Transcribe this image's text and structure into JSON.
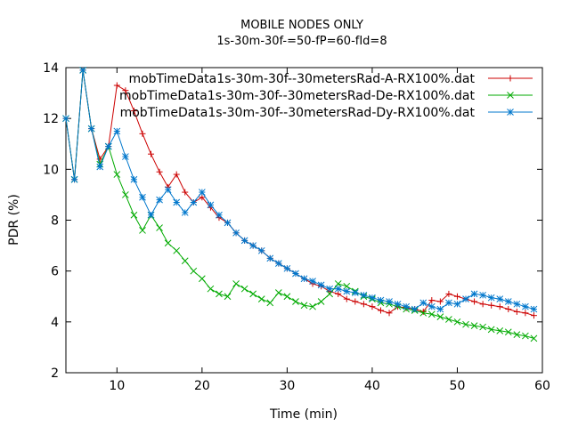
{
  "chart_data": {
    "type": "line",
    "title": "MOBILE NODES ONLY",
    "subtitle": "1s-30m-30f-=50-fP=60-fId=8",
    "xlabel": "Time (min)",
    "ylabel": "PDR (%)",
    "xlim": [
      4,
      60
    ],
    "ylim": [
      2,
      14
    ],
    "xticks": [
      10,
      20,
      30,
      40,
      50,
      60
    ],
    "yticks": [
      2,
      4,
      6,
      8,
      10,
      12,
      14
    ],
    "grid": false,
    "legend_position": "top-right",
    "series": [
      {
        "name": "mobTimeData1s-30m-30f--30metersRad-A-RX100%.dat",
        "color": "#cc0000",
        "marker": "plus",
        "x": [
          4,
          5,
          6,
          7,
          8,
          9,
          10,
          11,
          12,
          13,
          14,
          15,
          16,
          17,
          18,
          19,
          20,
          21,
          22,
          23,
          24,
          25,
          26,
          27,
          28,
          29,
          30,
          31,
          32,
          33,
          34,
          35,
          36,
          37,
          38,
          39,
          40,
          41,
          42,
          43,
          44,
          45,
          46,
          47,
          48,
          49,
          50,
          51,
          52,
          53,
          54,
          55,
          56,
          57,
          58,
          59
        ],
        "values": [
          12,
          9.6,
          13.9,
          11.6,
          10.4,
          10.9,
          13.3,
          13.1,
          12.3,
          11.4,
          10.6,
          9.9,
          9.3,
          9.8,
          9.1,
          8.7,
          8.9,
          8.5,
          8.1,
          7.9,
          7.5,
          7.2,
          7.0,
          6.8,
          6.5,
          6.3,
          6.1,
          5.9,
          5.7,
          5.5,
          5.4,
          5.2,
          5.1,
          4.9,
          4.8,
          4.7,
          4.6,
          4.45,
          4.35,
          4.6,
          4.55,
          4.5,
          4.4,
          4.85,
          4.8,
          5.1,
          5.0,
          4.9,
          4.8,
          4.7,
          4.65,
          4.6,
          4.5,
          4.4,
          4.35,
          4.25
        ]
      },
      {
        "name": "mobTimeData1s-30m-30f--30metersRad-De-RX100%.dat",
        "color": "#00aa00",
        "marker": "cross",
        "x": [
          4,
          5,
          6,
          7,
          8,
          9,
          10,
          11,
          12,
          13,
          14,
          15,
          16,
          17,
          18,
          19,
          20,
          21,
          22,
          23,
          24,
          25,
          26,
          27,
          28,
          29,
          30,
          31,
          32,
          33,
          34,
          35,
          36,
          37,
          38,
          39,
          40,
          41,
          42,
          43,
          44,
          45,
          46,
          47,
          48,
          49,
          50,
          51,
          52,
          53,
          54,
          55,
          56,
          57,
          58,
          59
        ],
        "values": [
          12,
          9.6,
          13.9,
          11.6,
          10.2,
          10.9,
          9.8,
          9.0,
          8.2,
          7.6,
          8.2,
          7.7,
          7.1,
          6.8,
          6.4,
          6.0,
          5.7,
          5.3,
          5.1,
          5.0,
          5.5,
          5.3,
          5.1,
          4.9,
          4.75,
          5.15,
          5.0,
          4.8,
          4.65,
          4.6,
          4.8,
          5.1,
          5.5,
          5.4,
          5.2,
          5.0,
          4.9,
          4.75,
          4.7,
          4.6,
          4.5,
          4.45,
          4.35,
          4.3,
          4.2,
          4.1,
          4.0,
          3.9,
          3.85,
          3.8,
          3.7,
          3.65,
          3.6,
          3.5,
          3.45,
          3.35
        ]
      },
      {
        "name": "mobTimeData1s-30m-30f--30metersRad-Dy-RX100%.dat",
        "color": "#0077cc",
        "marker": "star",
        "x": [
          4,
          5,
          6,
          7,
          8,
          9,
          10,
          11,
          12,
          13,
          14,
          15,
          16,
          17,
          18,
          19,
          20,
          21,
          22,
          23,
          24,
          25,
          26,
          27,
          28,
          29,
          30,
          31,
          32,
          33,
          34,
          35,
          36,
          37,
          38,
          39,
          40,
          41,
          42,
          43,
          44,
          45,
          46,
          47,
          48,
          49,
          50,
          51,
          52,
          53,
          54,
          55,
          56,
          57,
          58,
          59
        ],
        "values": [
          12,
          9.6,
          13.9,
          11.6,
          10.1,
          10.9,
          11.5,
          10.5,
          9.6,
          8.9,
          8.2,
          8.8,
          9.2,
          8.7,
          8.3,
          8.7,
          9.1,
          8.6,
          8.2,
          7.9,
          7.5,
          7.2,
          7.0,
          6.8,
          6.5,
          6.3,
          6.1,
          5.9,
          5.7,
          5.6,
          5.45,
          5.3,
          5.3,
          5.2,
          5.15,
          5.05,
          4.95,
          4.85,
          4.8,
          4.7,
          4.6,
          4.5,
          4.75,
          4.6,
          4.5,
          4.75,
          4.7,
          4.9,
          5.1,
          5.05,
          4.95,
          4.9,
          4.8,
          4.7,
          4.6,
          4.5
        ]
      }
    ]
  }
}
